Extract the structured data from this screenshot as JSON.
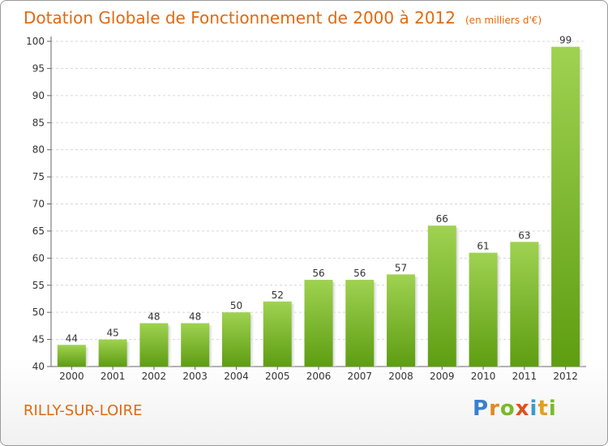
{
  "chart_data": {
    "type": "bar",
    "title": "Dotation Globale de Fonctionnement de 2000 à 2012",
    "unit_label": "(en milliers d'€)",
    "categories": [
      "2000",
      "2001",
      "2002",
      "2003",
      "2004",
      "2005",
      "2006",
      "2007",
      "2008",
      "2009",
      "2010",
      "2011",
      "2012"
    ],
    "values": [
      44,
      45,
      48,
      48,
      50,
      52,
      56,
      56,
      57,
      66,
      61,
      63,
      99
    ],
    "ylim": [
      40,
      100
    ],
    "yticks": [
      40,
      45,
      50,
      55,
      60,
      65,
      70,
      75,
      80,
      85,
      90,
      95,
      100
    ],
    "grid": true,
    "bar_color_top": "#9fd251",
    "bar_color_bottom": "#5e9d12",
    "xlabel": "",
    "ylabel": ""
  },
  "commune": "RILLY-SUR-LOIRE",
  "logo": {
    "p": "P",
    "r": "r",
    "o": "o",
    "x": "x",
    "i1": "i",
    "t": "t",
    "i2": "i"
  },
  "title_color": "#e06a10"
}
